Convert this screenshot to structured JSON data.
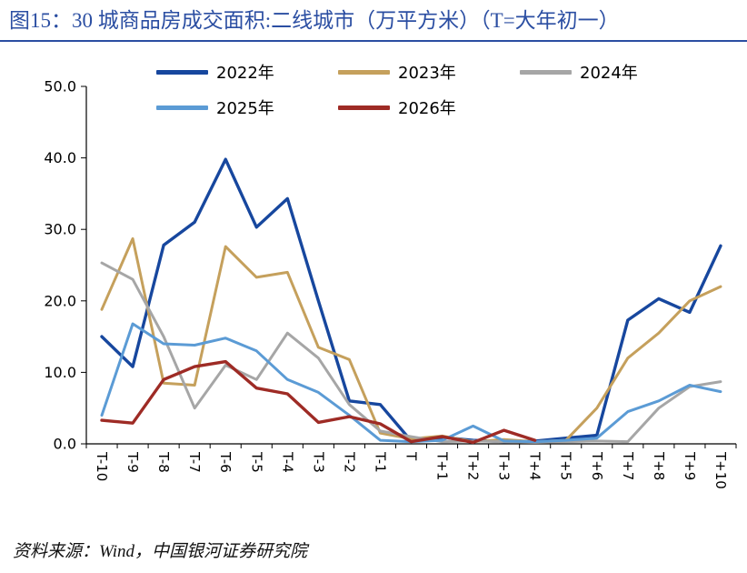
{
  "header": {
    "title": "图15：30 城商品房成交面积:二线城市（万平方米）（T=大年初一）",
    "accent_color": "#2B4EA2"
  },
  "footer": {
    "source": "资料来源：Wind，中国银河证券研究院"
  },
  "chart_data": {
    "type": "line",
    "title": "30 城商品房成交面积:二线城市（万平方米）（T=大年初一）",
    "xlabel": "",
    "ylabel": "",
    "ylim": [
      0,
      50
    ],
    "yticks": [
      0,
      10,
      20,
      30,
      40,
      50
    ],
    "grid": false,
    "legend_position": "top",
    "categories": [
      "T-10",
      "T-9",
      "T-8",
      "T-7",
      "T-6",
      "T-5",
      "T-4",
      "T-3",
      "T-2",
      "T-1",
      "T",
      "T+1",
      "T+2",
      "T+3",
      "T+4",
      "T+5",
      "T+6",
      "T+7",
      "T+8",
      "T+9",
      "T+10"
    ],
    "series": [
      {
        "name": "2022年",
        "color": "#17479E",
        "line_width": 3.4,
        "values": [
          15.0,
          10.8,
          27.8,
          31.0,
          39.8,
          30.3,
          34.3,
          20.0,
          6.0,
          5.5,
          0.4,
          0.9,
          0.5,
          0.3,
          0.4,
          0.8,
          1.2,
          17.3,
          20.3,
          18.4,
          27.7
        ]
      },
      {
        "name": "2023年",
        "color": "#C5A05C",
        "line_width": 3.0,
        "values": [
          18.8,
          28.7,
          8.5,
          8.2,
          27.6,
          23.3,
          24.0,
          13.5,
          11.8,
          1.5,
          0.7,
          1.1,
          0.3,
          0.6,
          0.3,
          0.5,
          5.0,
          12.0,
          15.5,
          20.0,
          22.0
        ]
      },
      {
        "name": "2024年",
        "color": "#A6A6A6",
        "line_width": 3.0,
        "values": [
          25.3,
          23.0,
          15.0,
          5.0,
          11.0,
          9.0,
          15.5,
          12.0,
          5.5,
          1.8,
          1.0,
          0.3,
          0.4,
          0.3,
          0.2,
          0.3,
          0.4,
          0.3,
          5.0,
          8.0,
          8.7
        ]
      },
      {
        "name": "2025年",
        "color": "#5B9BD5",
        "line_width": 3.0,
        "values": [
          4.0,
          16.8,
          14.0,
          13.8,
          14.8,
          13.0,
          9.0,
          7.2,
          4.0,
          0.5,
          0.3,
          0.5,
          2.5,
          0.4,
          0.3,
          0.5,
          0.8,
          4.5,
          6.0,
          8.2,
          7.3
        ]
      },
      {
        "name": "2026年",
        "color": "#9E2B25",
        "line_width": 3.4,
        "values": [
          3.3,
          2.9,
          9.0,
          10.8,
          11.5,
          7.8,
          7.0,
          3.0,
          3.8,
          2.8,
          0.3,
          1.0,
          0.2,
          1.9,
          0.5,
          null,
          null,
          null,
          null,
          null,
          null
        ]
      }
    ]
  }
}
